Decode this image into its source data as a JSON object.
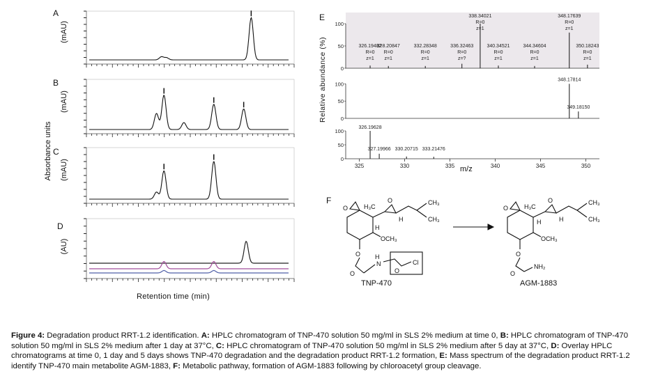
{
  "figure": {
    "y_axis_title": "Absorbance units",
    "x_axis_title": "Retention time (min)",
    "panels_hplc": [
      {
        "letter": "A",
        "unit": "(mAU)"
      },
      {
        "letter": "B",
        "unit": "(mAU)"
      },
      {
        "letter": "C",
        "unit": "(mAU)"
      },
      {
        "letter": "D",
        "unit": "(AU)"
      }
    ],
    "panel_E": {
      "letter": "E",
      "ylabel": "Relative abundance (%)",
      "xlabel": "m/z",
      "yticks": [
        "100",
        "50",
        "0"
      ],
      "xticks": [
        "325",
        "330",
        "335",
        "340",
        "345",
        "350"
      ]
    },
    "panel_F": {
      "letter": "F",
      "left_compound": "TNP-470",
      "right_compound": "AGM-1883"
    }
  },
  "chart_data": [
    {
      "type": "line",
      "panel": "A",
      "ylabel": "(mAU)",
      "peaks": [
        {
          "rt": 2.9,
          "height": 0.07
        },
        {
          "rt": 3.1,
          "height": 0.05
        },
        {
          "rt": 6.5,
          "height": 0.95
        }
      ]
    },
    {
      "type": "line",
      "panel": "B",
      "ylabel": "(mAU)",
      "peaks": [
        {
          "rt": 2.7,
          "height": 0.35
        },
        {
          "rt": 3.0,
          "height": 0.75
        },
        {
          "rt": 3.8,
          "height": 0.15
        },
        {
          "rt": 5.0,
          "height": 0.55
        },
        {
          "rt": 6.2,
          "height": 0.45
        }
      ]
    },
    {
      "type": "line",
      "panel": "C",
      "ylabel": "(mAU)",
      "peaks": [
        {
          "rt": 2.7,
          "height": 0.15
        },
        {
          "rt": 3.0,
          "height": 0.6
        },
        {
          "rt": 5.0,
          "height": 0.8
        }
      ]
    },
    {
      "type": "line",
      "panel": "D",
      "ylabel": "(AU)",
      "series": [
        {
          "name": "time 0",
          "color": "#222222",
          "peaks": [
            {
              "rt": 6.3,
              "height": 0.45
            }
          ]
        },
        {
          "name": "1 day",
          "color": "#a14d9a",
          "peaks": [
            {
              "rt": 3.0,
              "height": 0.15
            },
            {
              "rt": 5.0,
              "height": 0.15
            }
          ]
        },
        {
          "name": "5 days",
          "color": "#4f5fa8",
          "peaks": [
            {
              "rt": 3.0,
              "height": 0.05
            },
            {
              "rt": 5.0,
              "height": 0.05
            }
          ]
        }
      ]
    },
    {
      "type": "bar",
      "panel": "E",
      "xlabel": "m/z",
      "ylabel": "Relative abundance (%)",
      "xlim": [
        323.5,
        351.5
      ],
      "ylim": [
        0,
        100
      ],
      "subplots": [
        {
          "peaks": [
            {
              "mz": 326.19482,
              "rel": 6,
              "label": "326.19482",
              "r": "R=0",
              "z": "z=1"
            },
            {
              "mz": 328.20847,
              "rel": 5,
              "label": "328.20847",
              "r": "R=0",
              "z": "z=1"
            },
            {
              "mz": 332.28348,
              "rel": 5,
              "label": "332.28348",
              "r": "R=0",
              "z": "z=1"
            },
            {
              "mz": 336.32463,
              "rel": 10,
              "label": "336.32463",
              "r": "R=0",
              "z": "z=?"
            },
            {
              "mz": 338.34021,
              "rel": 100,
              "label": "338.34021",
              "r": "R=0",
              "z": "z=1"
            },
            {
              "mz": 340.34521,
              "rel": 6,
              "label": "340.34521",
              "r": "R=0",
              "z": "z=1"
            },
            {
              "mz": 344.34604,
              "rel": 5,
              "label": "344.34604",
              "r": "R=0",
              "z": "z=1"
            },
            {
              "mz": 348.17639,
              "rel": 80,
              "label": "348.17639",
              "r": "R=0",
              "z": "z=1"
            },
            {
              "mz": 350.18243,
              "rel": 8,
              "label": "350.18243",
              "r": "R=0",
              "z": "z=1"
            }
          ]
        },
        {
          "peaks": [
            {
              "mz": 348.17814,
              "rel": 100,
              "label": "348.17814"
            },
            {
              "mz": 349.1815,
              "rel": 20,
              "label": "349.18150"
            }
          ]
        },
        {
          "peaks": [
            {
              "mz": 326.19628,
              "rel": 100,
              "label": "326.19628"
            },
            {
              "mz": 327.19966,
              "rel": 18,
              "label": "327.19966"
            },
            {
              "mz": 330.20715,
              "rel": 8,
              "label": "330.20715"
            },
            {
              "mz": 333.21476,
              "rel": 7,
              "label": "333.21476"
            }
          ]
        }
      ]
    }
  ],
  "caption": {
    "lead": "Figure 4:",
    "lead_text": " Degradation product RRT-1.2 identification. ",
    "a_label": "A:",
    "a_text": " HPLC chromatogram of TNP-470 solution 50 mg/ml in SLS 2% medium at time 0, ",
    "b_label": "B:",
    "b_text": " HPLC chromatogram of TNP-470 solution 50 mg/ml in SLS 2% medium after 1 day at 37°C, ",
    "c_label": "C:",
    "c_text": " HPLC chromatogram of TNP-470 solution 50 mg/ml in SLS 2% medium after 5 day at 37°C, ",
    "d_label": "D:",
    "d_text": " Overlay HPLC chromatograms at time 0, 1 day and 5 days shows TNP-470 degradation and the degradation product RRT-1.2 formation, ",
    "e_label": "E:",
    "e_text": " Mass spectrum of the degradation product RRT-1.2 identify TNP-470 main metabolite AGM-1883, ",
    "f_label": "F:",
    "f_text": " Metabolic pathway, formation of AGM-1883 following by chloroacetyl group cleavage."
  }
}
